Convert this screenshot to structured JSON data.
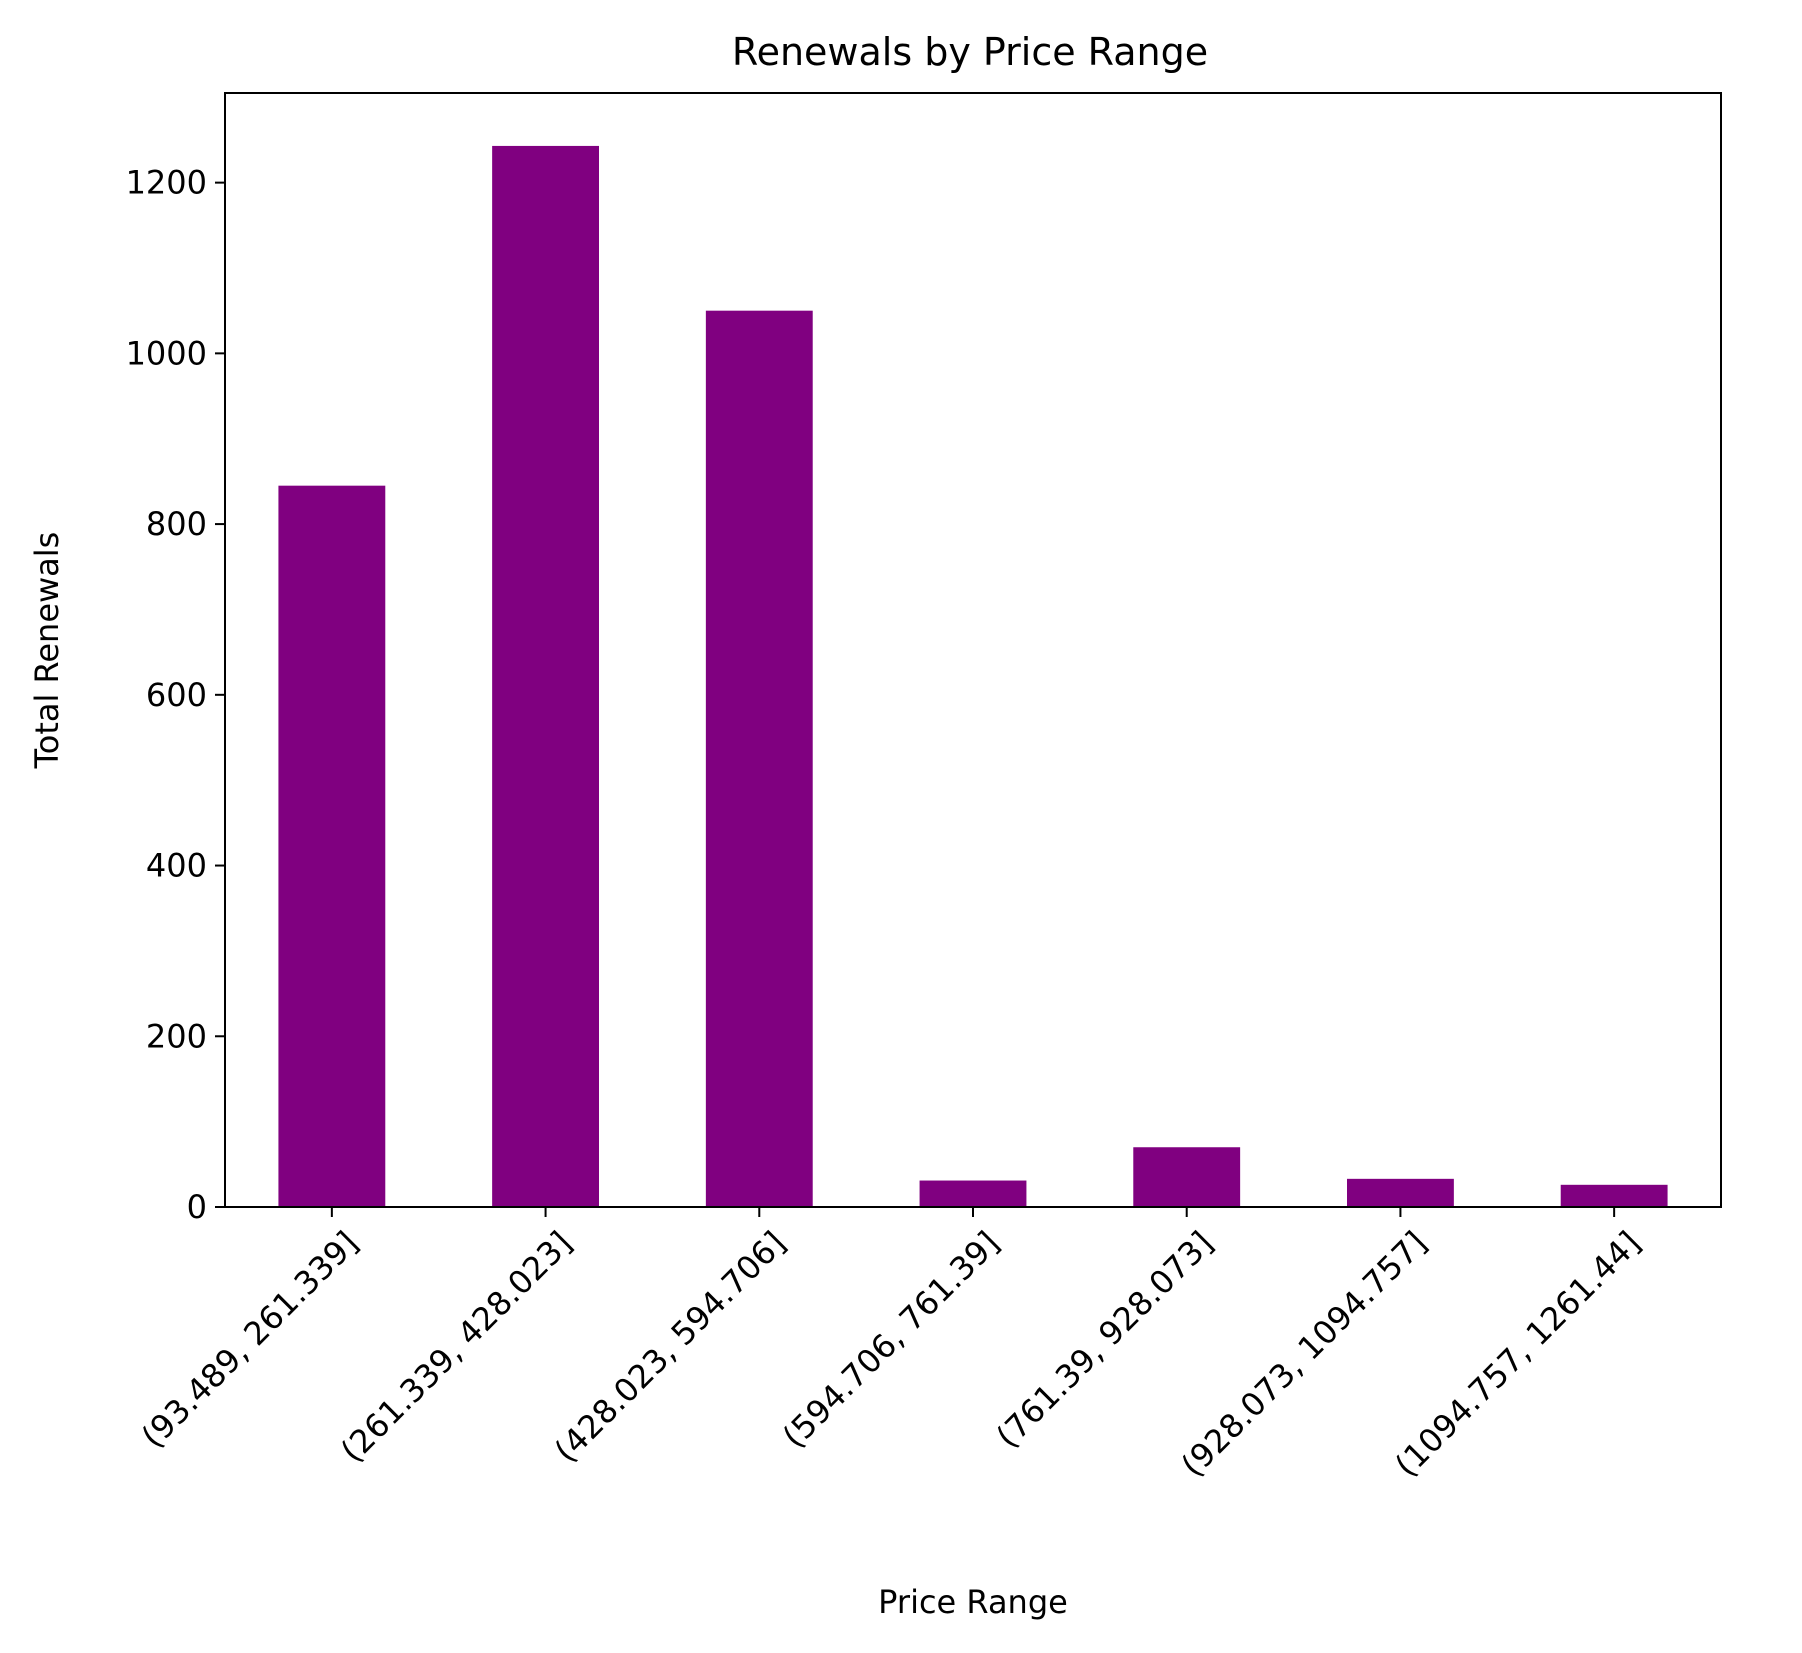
{
  "chart_data": {
    "type": "bar",
    "title": "Renewals by Price Range",
    "xlabel": "Price Range",
    "ylabel": "Total Renewals",
    "categories": [
      "(93.489, 261.339]",
      "(261.339, 428.023]",
      "(428.023, 594.706]",
      "(594.706, 761.39]",
      "(761.39, 928.073]",
      "(928.073, 1094.757]",
      "(1094.757, 1261.44]"
    ],
    "values": [
      845,
      1243,
      1050,
      31,
      70,
      33,
      26
    ],
    "ylim": [
      0,
      1305
    ],
    "yticks": [
      0,
      200,
      400,
      600,
      800,
      1000,
      1200
    ],
    "bar_color": "#800080",
    "grid": false,
    "legend": false
  }
}
